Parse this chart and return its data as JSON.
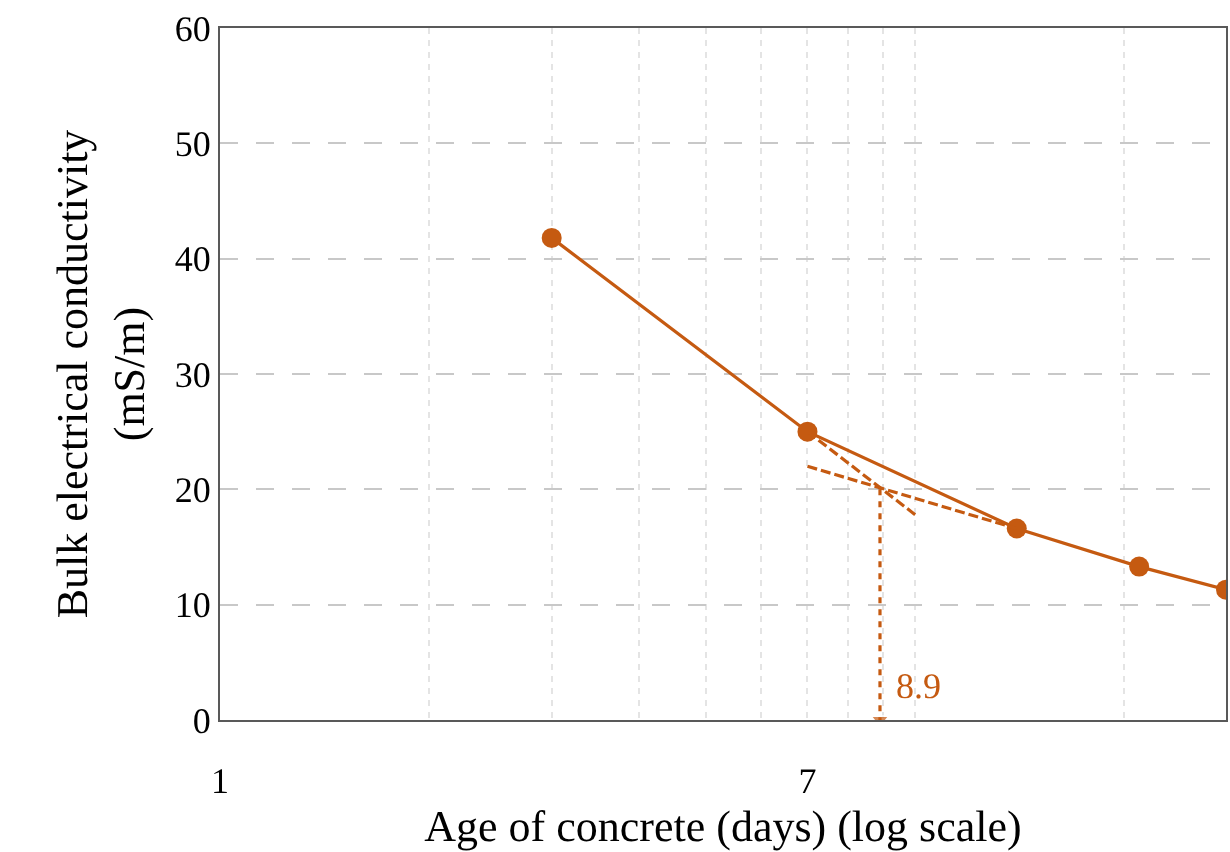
{
  "chart_data": {
    "type": "line",
    "xlabel": "Age of concrete (days) (log scale)",
    "ylabel": "Bulk electrical conductivity\n(mS/m)",
    "log": "x",
    "xlim": [
      1,
      28
    ],
    "ylim": [
      0,
      60
    ],
    "xticks": [
      1,
      {
        "value": 2,
        "label": null
      },
      {
        "value": 3,
        "label": null
      },
      {
        "value": 4,
        "label": null
      },
      {
        "value": 5,
        "label": null
      },
      {
        "value": 6,
        "label": null
      },
      7,
      {
        "value": 8,
        "label": null
      },
      {
        "value": 9,
        "label": null
      },
      {
        "value": 10,
        "label": null
      },
      {
        "value": 20,
        "label": null
      }
    ],
    "yticks": [
      0,
      10,
      20,
      30,
      40,
      50,
      60
    ],
    "grid": true,
    "series": [
      {
        "color": "#c55a11",
        "x": [
          3,
          7,
          14,
          21,
          28
        ],
        "values": [
          41.8,
          25,
          16.6,
          13.3,
          11.3
        ],
        "marker": "circle",
        "line_style": "solid"
      },
      {
        "color": "#c55a11",
        "x": [
          7,
          10
        ],
        "values": [
          25,
          17.8
        ],
        "marker": "none",
        "line_style": "dashed"
      },
      {
        "color": "#c55a11",
        "x": [
          7,
          14
        ],
        "values": [
          22,
          16.6
        ],
        "marker": "none",
        "line_style": "dashed"
      },
      {
        "color": "#c55a11",
        "x": [
          8.9,
          8.9
        ],
        "values": [
          20,
          0
        ],
        "marker": "triangle",
        "line_style": "dotted"
      }
    ],
    "annotations": [
      {
        "text": "8.9",
        "x": 8.9,
        "y": 3
      }
    ]
  }
}
